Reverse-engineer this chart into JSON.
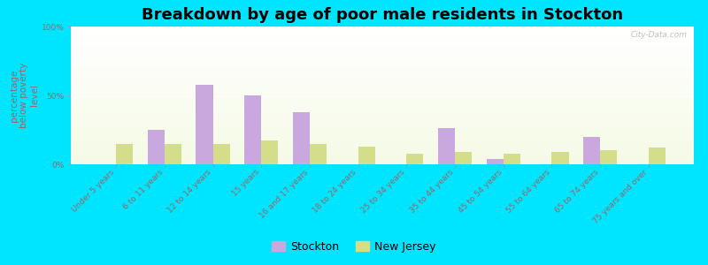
{
  "title": "Breakdown by age of poor male residents in Stockton",
  "ylabel": "percentage\nbelow poverty\nlevel",
  "categories": [
    "Under 5 years",
    "6 to 11 years",
    "12 to 14 years",
    "15 years",
    "16 and 17 years",
    "18 to 24 years",
    "25 to 34 years",
    "35 to 44 years",
    "45 to 54 years",
    "55 to 64 years",
    "65 to 74 years",
    "75 years and over"
  ],
  "stockton": [
    0,
    25,
    58,
    50,
    38,
    0,
    0,
    26,
    4,
    0,
    20,
    0
  ],
  "new_jersey": [
    15,
    15,
    15,
    17,
    15,
    13,
    8,
    9,
    8,
    9,
    10,
    12
  ],
  "stockton_color": "#c9a8e0",
  "new_jersey_color": "#d4de8a",
  "bg_outer": "#00e5ff",
  "ylim": [
    0,
    100
  ],
  "yticks": [
    0,
    50,
    100
  ],
  "yticklabels": [
    "0%",
    "50%",
    "100%"
  ],
  "title_fontsize": 13,
  "axis_label_fontsize": 7.5,
  "tick_label_fontsize": 6.5,
  "legend_fontsize": 9,
  "watermark": "City-Data.com"
}
